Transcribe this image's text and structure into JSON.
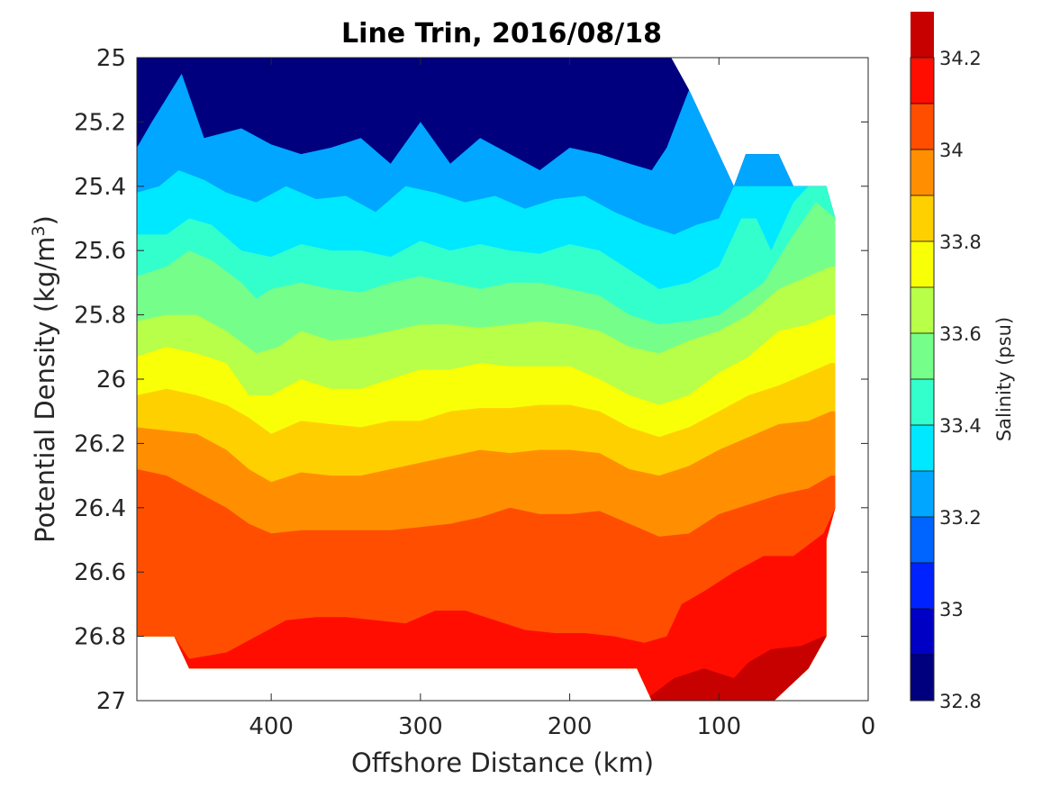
{
  "chart_data": {
    "type": "contour",
    "title": "Line Trin, 2016/08/18",
    "xlabel": "Offshore Distance (km)",
    "ylabel_main": "Potential Density (kg/m",
    "ylabel_sup": "3",
    "ylabel_close": ")",
    "xlim": [
      490,
      0
    ],
    "ylim": [
      25,
      27
    ],
    "x_reversed": true,
    "y_reversed": true,
    "xticks": [
      400,
      300,
      200,
      100,
      0
    ],
    "xtick_labels": [
      "400",
      "300",
      "200",
      "100",
      "0"
    ],
    "yticks": [
      25,
      25.2,
      25.4,
      25.6,
      25.8,
      26,
      26.2,
      26.4,
      26.6,
      26.8,
      27
    ],
    "ytick_labels": [
      "25",
      "25.2",
      "25.4",
      "25.6",
      "25.8",
      "26",
      "26.2",
      "26.4",
      "26.6",
      "26.8",
      "27"
    ],
    "colorbar": {
      "label": "Salinity (psu)",
      "range": [
        32.8,
        34.2
      ],
      "ticks": [
        32.8,
        33,
        33.2,
        33.4,
        33.6,
        33.8,
        34,
        34.2
      ],
      "tick_labels": [
        "32.8",
        "33",
        "33.2",
        "33.4",
        "33.6",
        "33.8",
        "34",
        "34.2"
      ],
      "levels": [
        32.8,
        32.9,
        33.0,
        33.1,
        33.2,
        33.3,
        33.4,
        33.5,
        33.6,
        33.7,
        33.8,
        33.9,
        34.0,
        34.1,
        34.2
      ],
      "colors": [
        "#00007f",
        "#0000c5",
        "#0022ff",
        "#0064ff",
        "#00a6ff",
        "#00e8ff",
        "#33ffcc",
        "#75ff8a",
        "#b7ff48",
        "#f9ff06",
        "#ffd000",
        "#ff8f00",
        "#ff4e00",
        "#ff0d00",
        "#c70000"
      ]
    },
    "domain_outline": [
      [
        490,
        25.28
      ],
      [
        490,
        26.8
      ],
      [
        465,
        26.8
      ],
      [
        455,
        26.9
      ],
      [
        300,
        26.9
      ],
      [
        155,
        26.9
      ],
      [
        145,
        27.0
      ],
      [
        63,
        27.0
      ],
      [
        40,
        26.9
      ],
      [
        28,
        26.8
      ],
      [
        28,
        26.5
      ],
      [
        22,
        26.4
      ],
      [
        22,
        25.5
      ],
      [
        28,
        25.4
      ],
      [
        50,
        25.4
      ],
      [
        60,
        25.3
      ],
      [
        82,
        25.3
      ],
      [
        90,
        25.4
      ],
      [
        120,
        25.1
      ],
      [
        132,
        25.0
      ],
      [
        490,
        25.0
      ]
    ],
    "contours": [
      {
        "level": 33.2,
        "points": [
          [
            490,
            25.28
          ],
          [
            480,
            25.2
          ],
          [
            460,
            25.05
          ],
          [
            445,
            25.25
          ],
          [
            420,
            25.22
          ],
          [
            400,
            25.27
          ],
          [
            380,
            25.3
          ],
          [
            360,
            25.28
          ],
          [
            340,
            25.25
          ],
          [
            320,
            25.33
          ],
          [
            300,
            25.2
          ],
          [
            280,
            25.33
          ],
          [
            260,
            25.25
          ],
          [
            240,
            25.3
          ],
          [
            220,
            25.35
          ],
          [
            200,
            25.28
          ],
          [
            180,
            25.3
          ],
          [
            160,
            25.33
          ],
          [
            145,
            25.35
          ],
          [
            135,
            25.28
          ],
          [
            120,
            25.1
          ]
        ]
      },
      {
        "level": 33.3,
        "points": [
          [
            490,
            25.42
          ],
          [
            475,
            25.4
          ],
          [
            462,
            25.35
          ],
          [
            445,
            25.38
          ],
          [
            430,
            25.42
          ],
          [
            410,
            25.45
          ],
          [
            390,
            25.4
          ],
          [
            370,
            25.44
          ],
          [
            350,
            25.43
          ],
          [
            330,
            25.48
          ],
          [
            310,
            25.4
          ],
          [
            290,
            25.42
          ],
          [
            270,
            25.45
          ],
          [
            250,
            25.43
          ],
          [
            230,
            25.47
          ],
          [
            210,
            25.44
          ],
          [
            190,
            25.43
          ],
          [
            170,
            25.48
          ],
          [
            150,
            25.52
          ],
          [
            130,
            25.55
          ],
          [
            115,
            25.52
          ],
          [
            100,
            25.5
          ],
          [
            90,
            25.4
          ]
        ]
      },
      {
        "level": 33.4,
        "points": [
          [
            490,
            25.55
          ],
          [
            470,
            25.55
          ],
          [
            455,
            25.5
          ],
          [
            440,
            25.52
          ],
          [
            420,
            25.6
          ],
          [
            400,
            25.62
          ],
          [
            380,
            25.58
          ],
          [
            360,
            25.6
          ],
          [
            340,
            25.6
          ],
          [
            320,
            25.62
          ],
          [
            300,
            25.57
          ],
          [
            280,
            25.6
          ],
          [
            260,
            25.58
          ],
          [
            240,
            25.6
          ],
          [
            220,
            25.61
          ],
          [
            200,
            25.58
          ],
          [
            180,
            25.6
          ],
          [
            160,
            25.66
          ],
          [
            140,
            25.72
          ],
          [
            120,
            25.7
          ],
          [
            100,
            25.65
          ],
          [
            85,
            25.5
          ],
          [
            75,
            25.5
          ],
          [
            65,
            25.6
          ],
          [
            50,
            25.45
          ],
          [
            40,
            25.4
          ]
        ]
      },
      {
        "level": 33.5,
        "points": [
          [
            490,
            25.68
          ],
          [
            470,
            25.65
          ],
          [
            455,
            25.6
          ],
          [
            440,
            25.63
          ],
          [
            420,
            25.7
          ],
          [
            410,
            25.75
          ],
          [
            400,
            25.72
          ],
          [
            380,
            25.7
          ],
          [
            360,
            25.72
          ],
          [
            340,
            25.73
          ],
          [
            320,
            25.7
          ],
          [
            300,
            25.68
          ],
          [
            280,
            25.7
          ],
          [
            260,
            25.72
          ],
          [
            240,
            25.7
          ],
          [
            220,
            25.7
          ],
          [
            200,
            25.72
          ],
          [
            180,
            25.74
          ],
          [
            160,
            25.8
          ],
          [
            140,
            25.83
          ],
          [
            120,
            25.82
          ],
          [
            100,
            25.8
          ],
          [
            85,
            25.75
          ],
          [
            70,
            25.7
          ],
          [
            50,
            25.55
          ],
          [
            35,
            25.45
          ],
          [
            22,
            25.5
          ]
        ]
      },
      {
        "level": 33.6,
        "points": [
          [
            490,
            25.82
          ],
          [
            470,
            25.8
          ],
          [
            450,
            25.8
          ],
          [
            430,
            25.85
          ],
          [
            410,
            25.92
          ],
          [
            395,
            25.9
          ],
          [
            380,
            25.85
          ],
          [
            360,
            25.88
          ],
          [
            340,
            25.87
          ],
          [
            320,
            25.85
          ],
          [
            300,
            25.83
          ],
          [
            280,
            25.83
          ],
          [
            260,
            25.84
          ],
          [
            240,
            25.83
          ],
          [
            220,
            25.82
          ],
          [
            200,
            25.83
          ],
          [
            180,
            25.85
          ],
          [
            160,
            25.9
          ],
          [
            140,
            25.92
          ],
          [
            120,
            25.88
          ],
          [
            100,
            25.85
          ],
          [
            80,
            25.8
          ],
          [
            60,
            25.72
          ],
          [
            40,
            25.68
          ],
          [
            25,
            25.65
          ]
        ]
      },
      {
        "level": 33.7,
        "points": [
          [
            490,
            25.93
          ],
          [
            470,
            25.9
          ],
          [
            450,
            25.92
          ],
          [
            430,
            25.95
          ],
          [
            415,
            26.05
          ],
          [
            400,
            26.05
          ],
          [
            380,
            26.0
          ],
          [
            360,
            26.03
          ],
          [
            340,
            26.03
          ],
          [
            320,
            26.0
          ],
          [
            300,
            25.97
          ],
          [
            280,
            25.97
          ],
          [
            260,
            25.95
          ],
          [
            240,
            25.96
          ],
          [
            220,
            25.96
          ],
          [
            200,
            25.96
          ],
          [
            180,
            26.0
          ],
          [
            160,
            26.05
          ],
          [
            140,
            26.08
          ],
          [
            120,
            26.05
          ],
          [
            100,
            25.98
          ],
          [
            80,
            25.93
          ],
          [
            60,
            25.85
          ],
          [
            40,
            25.83
          ],
          [
            25,
            25.8
          ]
        ]
      },
      {
        "level": 33.8,
        "points": [
          [
            490,
            26.05
          ],
          [
            470,
            26.03
          ],
          [
            450,
            26.05
          ],
          [
            430,
            26.08
          ],
          [
            415,
            26.12
          ],
          [
            400,
            26.17
          ],
          [
            380,
            26.13
          ],
          [
            360,
            26.14
          ],
          [
            340,
            26.15
          ],
          [
            320,
            26.13
          ],
          [
            300,
            26.13
          ],
          [
            280,
            26.1
          ],
          [
            260,
            26.09
          ],
          [
            240,
            26.09
          ],
          [
            220,
            26.08
          ],
          [
            200,
            26.08
          ],
          [
            180,
            26.1
          ],
          [
            160,
            26.15
          ],
          [
            140,
            26.18
          ],
          [
            120,
            26.15
          ],
          [
            100,
            26.1
          ],
          [
            80,
            26.05
          ],
          [
            60,
            26.02
          ],
          [
            40,
            25.98
          ],
          [
            25,
            25.95
          ]
        ]
      },
      {
        "level": 33.9,
        "points": [
          [
            490,
            26.15
          ],
          [
            470,
            26.16
          ],
          [
            450,
            26.17
          ],
          [
            430,
            26.22
          ],
          [
            415,
            26.28
          ],
          [
            400,
            26.32
          ],
          [
            380,
            26.29
          ],
          [
            360,
            26.3
          ],
          [
            340,
            26.3
          ],
          [
            320,
            26.28
          ],
          [
            300,
            26.26
          ],
          [
            280,
            26.24
          ],
          [
            260,
            26.22
          ],
          [
            240,
            26.23
          ],
          [
            220,
            26.22
          ],
          [
            200,
            26.22
          ],
          [
            180,
            26.23
          ],
          [
            160,
            26.28
          ],
          [
            140,
            26.3
          ],
          [
            120,
            26.27
          ],
          [
            100,
            26.22
          ],
          [
            80,
            26.18
          ],
          [
            60,
            26.14
          ],
          [
            40,
            26.13
          ],
          [
            25,
            26.1
          ]
        ]
      },
      {
        "level": 34.0,
        "points": [
          [
            490,
            26.28
          ],
          [
            470,
            26.3
          ],
          [
            450,
            26.35
          ],
          [
            430,
            26.4
          ],
          [
            415,
            26.45
          ],
          [
            400,
            26.48
          ],
          [
            380,
            26.47
          ],
          [
            360,
            26.47
          ],
          [
            340,
            26.47
          ],
          [
            320,
            26.47
          ],
          [
            300,
            26.46
          ],
          [
            280,
            26.45
          ],
          [
            260,
            26.43
          ],
          [
            240,
            26.4
          ],
          [
            220,
            26.42
          ],
          [
            200,
            26.42
          ],
          [
            180,
            26.41
          ],
          [
            160,
            26.45
          ],
          [
            140,
            26.49
          ],
          [
            120,
            26.48
          ],
          [
            100,
            26.42
          ],
          [
            80,
            26.39
          ],
          [
            60,
            26.36
          ],
          [
            40,
            26.34
          ],
          [
            25,
            26.3
          ]
        ]
      },
      {
        "level": 34.1,
        "points": [
          [
            490,
            26.8
          ],
          [
            465,
            26.8
          ],
          [
            455,
            26.87
          ],
          [
            430,
            26.85
          ],
          [
            410,
            26.8
          ],
          [
            390,
            26.75
          ],
          [
            370,
            26.74
          ],
          [
            350,
            26.74
          ],
          [
            330,
            26.75
          ],
          [
            310,
            26.76
          ],
          [
            290,
            26.72
          ],
          [
            270,
            26.72
          ],
          [
            250,
            26.75
          ],
          [
            230,
            26.78
          ],
          [
            210,
            26.79
          ],
          [
            190,
            26.79
          ],
          [
            170,
            26.8
          ],
          [
            150,
            26.82
          ],
          [
            135,
            26.8
          ],
          [
            125,
            26.7
          ],
          [
            110,
            26.66
          ],
          [
            90,
            26.6
          ],
          [
            70,
            26.55
          ],
          [
            50,
            26.55
          ],
          [
            30,
            26.48
          ],
          [
            22,
            26.4
          ]
        ]
      },
      {
        "level": 34.2,
        "points": [
          [
            150,
            27.0
          ],
          [
            130,
            26.93
          ],
          [
            110,
            26.9
          ],
          [
            90,
            26.93
          ],
          [
            80,
            26.88
          ],
          [
            65,
            26.84
          ],
          [
            45,
            26.83
          ],
          [
            30,
            26.8
          ]
        ]
      }
    ]
  }
}
